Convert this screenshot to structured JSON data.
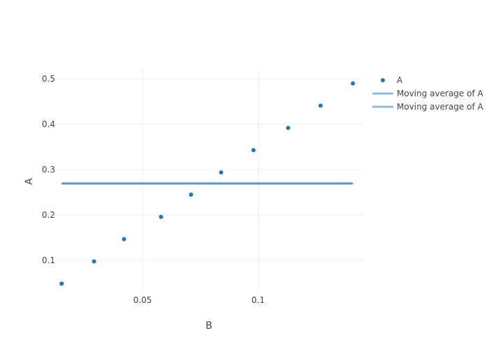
{
  "chart_data": {
    "type": "scatter",
    "title": "",
    "xlabel": "B",
    "ylabel": "A",
    "xlim": [
      0.0125,
      0.1455
    ],
    "ylim": [
      0.028,
      0.52
    ],
    "x_ticks": [
      0.05,
      0.1
    ],
    "x_tick_labels": [
      "0.05",
      "0.1"
    ],
    "y_ticks": [
      0.1,
      0.2,
      0.3,
      0.4,
      0.5
    ],
    "y_tick_labels": [
      "0.1",
      "0.2",
      "0.3",
      "0.4",
      "0.5"
    ],
    "grid": true,
    "legend_position": "top-right",
    "series": [
      {
        "name": "A",
        "mode": "markers",
        "color": "#1f77b4",
        "x": [
          0.015,
          0.029,
          0.042,
          0.058,
          0.071,
          0.084,
          0.098,
          0.113,
          0.127,
          0.141
        ],
        "y": [
          0.049,
          0.098,
          0.147,
          0.196,
          0.245,
          0.294,
          0.343,
          0.392,
          0.441,
          0.49
        ]
      },
      {
        "name": "Moving average of A",
        "mode": "line",
        "color": "#1f77b4",
        "opacity": 0.5,
        "x": [
          0.015,
          0.141
        ],
        "y": [
          0.2695,
          0.2695
        ]
      },
      {
        "name": "Moving average of A",
        "mode": "line",
        "color": "#1f77b4",
        "opacity": 0.5,
        "x": [
          0.015,
          0.141
        ],
        "y": [
          0.2695,
          0.2695
        ]
      }
    ]
  }
}
